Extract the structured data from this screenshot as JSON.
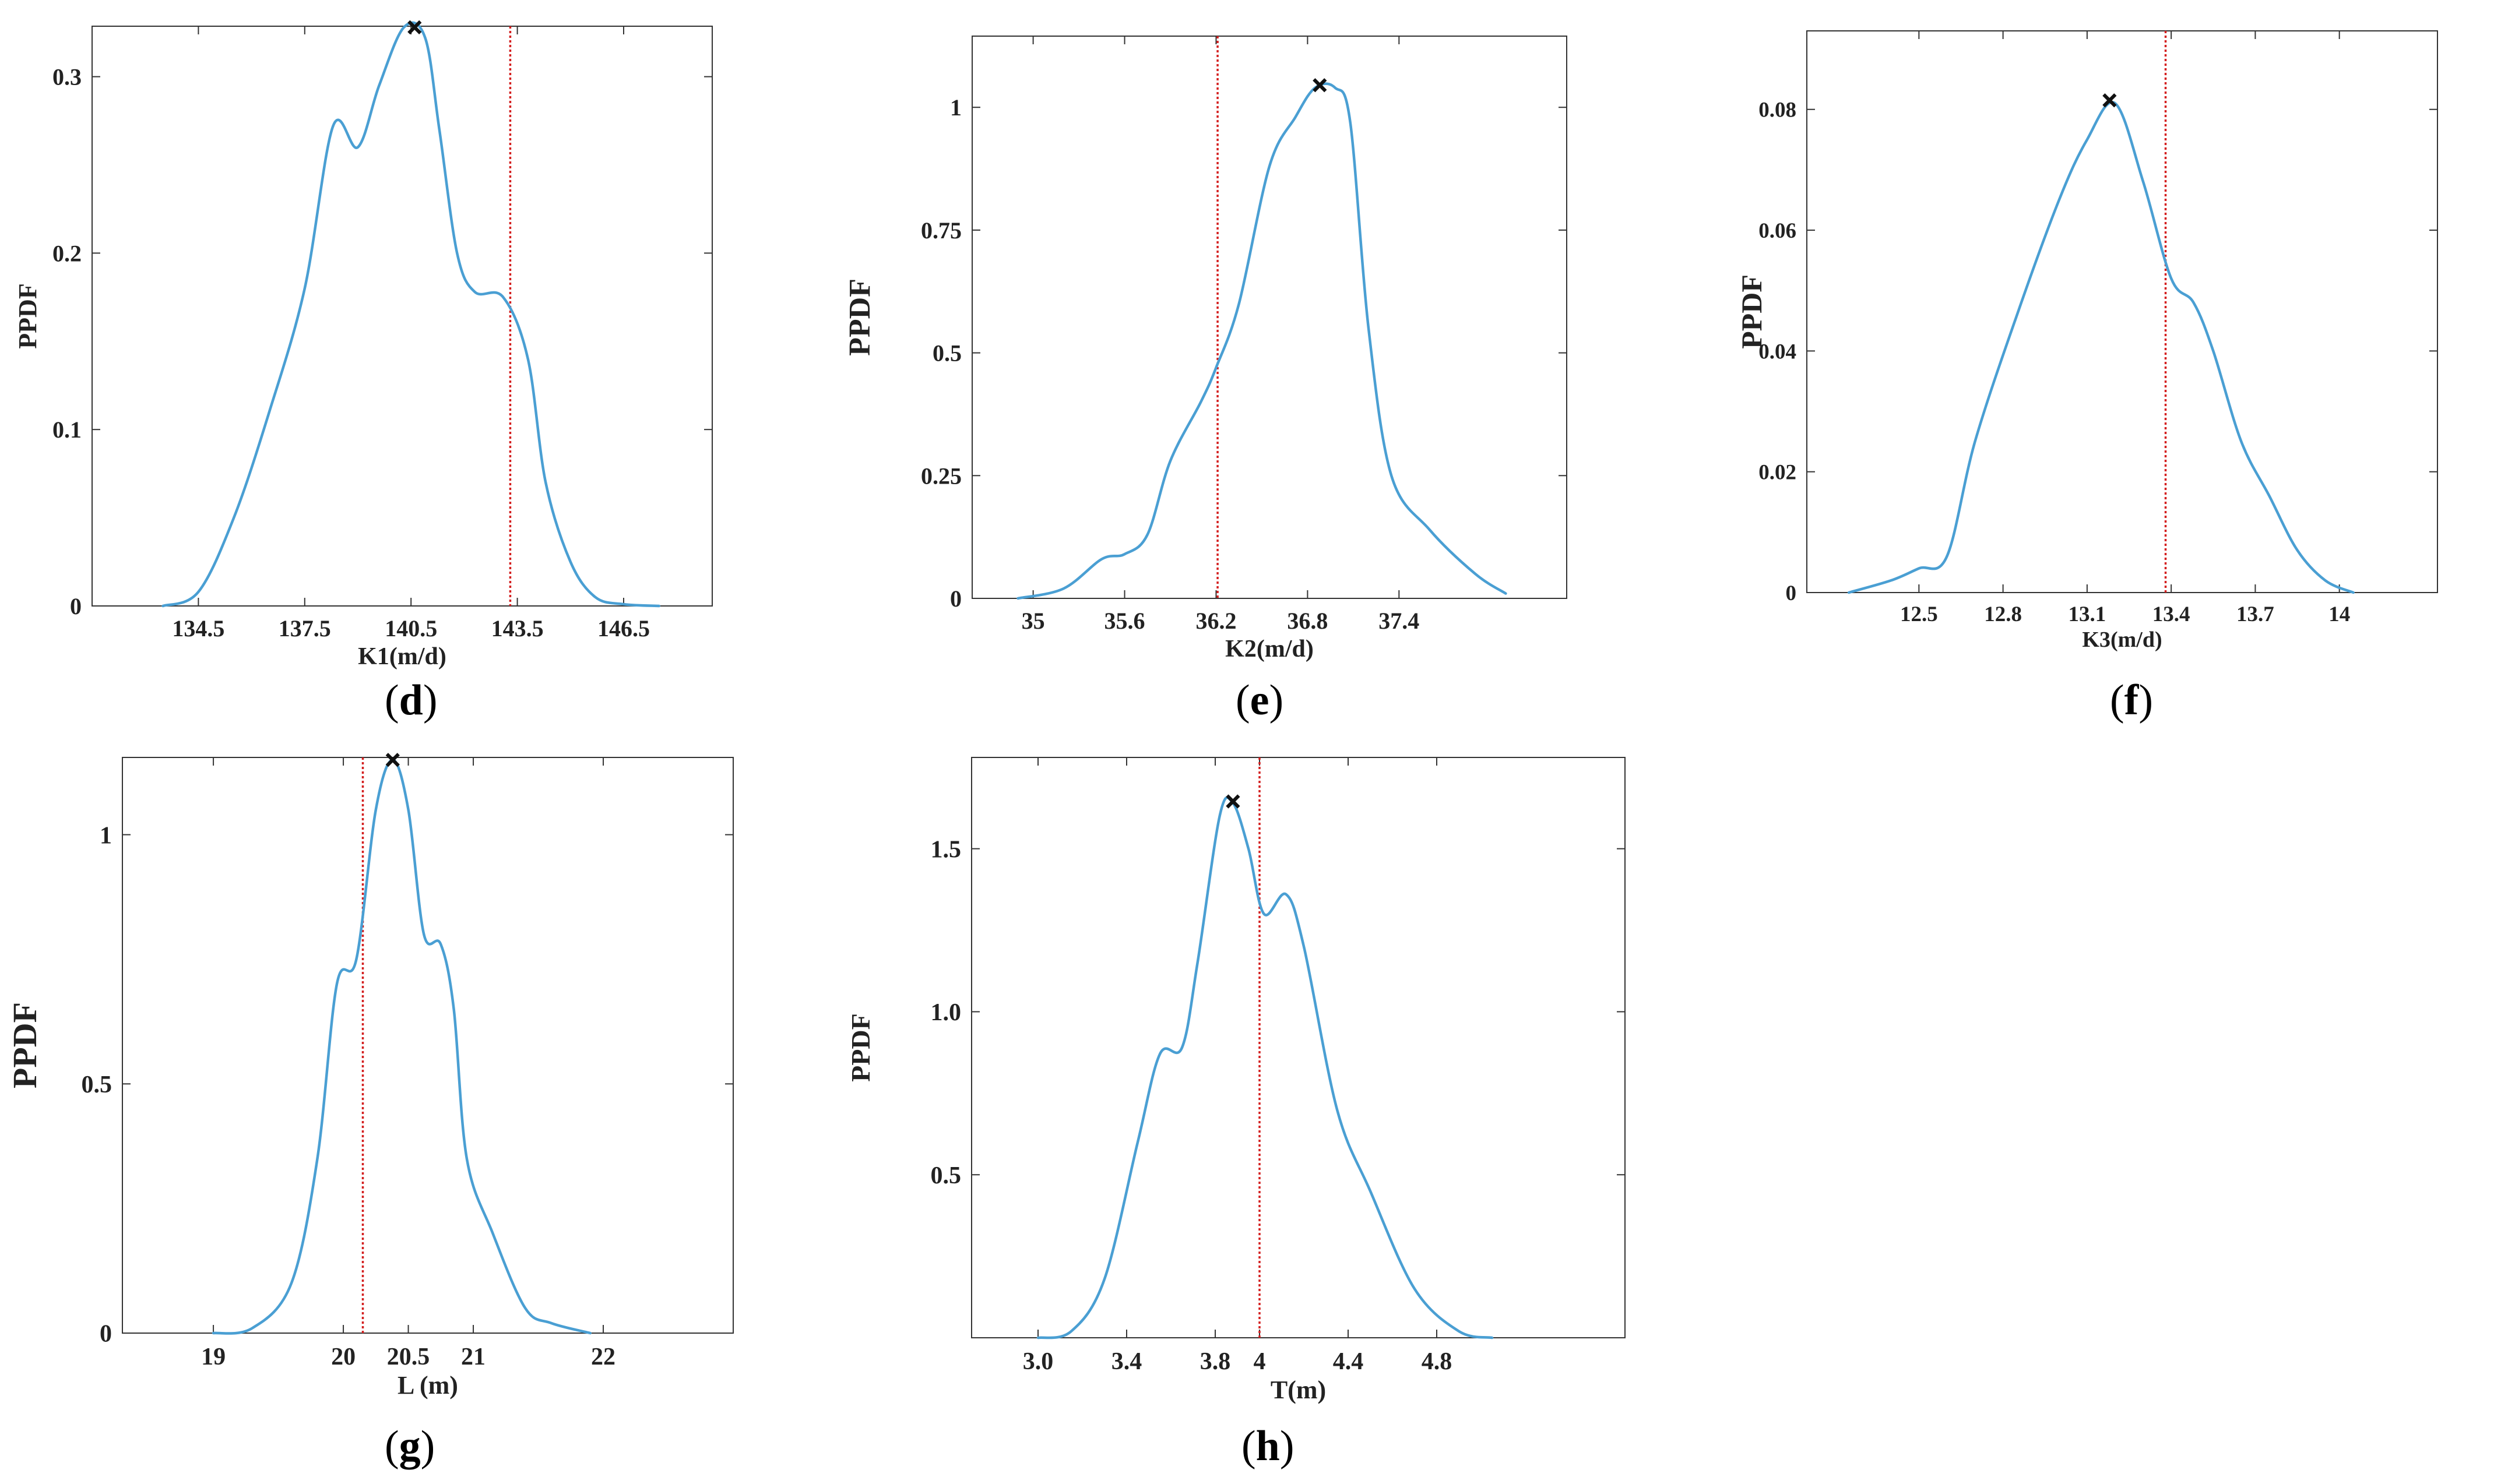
{
  "figure_labels": {
    "d": {
      "open": "(",
      "letter": "d",
      "close": ")"
    },
    "e": {
      "open": "(",
      "letter": "e",
      "close": ")"
    },
    "f": {
      "open": "(",
      "letter": "f",
      "close": ")"
    },
    "g": {
      "open": "(",
      "letter": "g",
      "close": ")"
    },
    "h": {
      "open": "(",
      "letter": "h",
      "close": ")"
    }
  },
  "colors": {
    "curve": "#4a9fd3",
    "reference_line": "#d42020",
    "marker": "#111111",
    "axis": "#333333"
  },
  "chart_data": [
    {
      "id": "d",
      "type": "line",
      "title": "",
      "xlabel": "K1(m/d)",
      "ylabel": "PPDF",
      "xlim": [
        131.5,
        149.0
      ],
      "ylim": [
        0,
        0.3286
      ],
      "xticks": [
        134.5,
        137.5,
        140.5,
        143.5,
        146.5
      ],
      "xtick_labels": [
        "134.5",
        "137.5",
        "140.5",
        "143.5",
        "146.5"
      ],
      "yticks": [
        0,
        0.1,
        0.2,
        0.3
      ],
      "ytick_labels": [
        "0",
        "0.1",
        "0.2",
        "0.3"
      ],
      "x": [
        133.5,
        134.5,
        135.5,
        136.5,
        137.5,
        138.3,
        139.0,
        139.6,
        140.3,
        140.9,
        141.3,
        141.8,
        142.3,
        143.1,
        143.8,
        144.3,
        145.0,
        145.7,
        146.5,
        147.5
      ],
      "y": [
        0.0,
        0.008,
        0.05,
        0.11,
        0.18,
        0.272,
        0.26,
        0.295,
        0.328,
        0.322,
        0.27,
        0.2,
        0.178,
        0.175,
        0.14,
        0.07,
        0.025,
        0.005,
        0.001,
        0.0
      ],
      "peak": {
        "x": 140.6,
        "y": 0.328
      },
      "reference_x": 143.3
    },
    {
      "id": "e",
      "type": "line",
      "title": "",
      "xlabel": "K2(m/d)",
      "ylabel": "PPDF",
      "xlim": [
        34.6,
        38.5
      ],
      "ylim": [
        0,
        1.145
      ],
      "xticks": [
        35.0,
        35.6,
        36.2,
        36.8,
        37.4
      ],
      "xtick_labels": [
        "35",
        "35.6",
        "36.2",
        "36.8",
        "37.4"
      ],
      "yticks": [
        0,
        0.25,
        0.5,
        0.75,
        1.0
      ],
      "ytick_labels": [
        "0",
        "0.25",
        "0.5",
        "0.75",
        "1"
      ],
      "x": [
        34.9,
        35.2,
        35.45,
        35.6,
        35.75,
        35.9,
        36.1,
        36.2,
        36.35,
        36.55,
        36.72,
        36.85,
        36.98,
        37.08,
        37.2,
        37.35,
        37.6,
        37.9,
        38.1
      ],
      "y": [
        0.0,
        0.02,
        0.08,
        0.09,
        0.13,
        0.28,
        0.4,
        0.47,
        0.6,
        0.88,
        0.98,
        1.04,
        1.04,
        0.97,
        0.55,
        0.25,
        0.14,
        0.05,
        0.01
      ],
      "peak": {
        "x": 36.88,
        "y": 1.045
      },
      "reference_x": 36.21
    },
    {
      "id": "f",
      "type": "line",
      "title": "",
      "xlabel": "K3(m/d)",
      "ylabel": "PPDF",
      "xlim": [
        12.1,
        14.35
      ],
      "ylim": [
        0,
        0.093
      ],
      "xticks": [
        12.5,
        12.8,
        13.1,
        13.4,
        13.7,
        14.0
      ],
      "xtick_labels": [
        "12.5",
        "12.8",
        "13.1",
        "13.4",
        "13.7",
        "14"
      ],
      "yticks": [
        0,
        0.02,
        0.04,
        0.06,
        0.08
      ],
      "ytick_labels": [
        "0",
        "0.02",
        "0.04",
        "0.06",
        "0.08"
      ],
      "x": [
        12.25,
        12.4,
        12.5,
        12.6,
        12.7,
        12.85,
        13.0,
        13.1,
        13.2,
        13.3,
        13.4,
        13.48,
        13.55,
        13.65,
        13.75,
        13.85,
        13.95,
        14.05
      ],
      "y": [
        0.0,
        0.002,
        0.004,
        0.006,
        0.025,
        0.046,
        0.065,
        0.075,
        0.081,
        0.068,
        0.052,
        0.048,
        0.04,
        0.025,
        0.016,
        0.007,
        0.002,
        0.0
      ],
      "peak": {
        "x": 13.18,
        "y": 0.0815
      },
      "reference_x": 13.38
    },
    {
      "id": "g",
      "type": "line",
      "title": "",
      "xlabel": "L (m)",
      "ylabel": "PPDF",
      "xlim": [
        18.3,
        23.0
      ],
      "ylim": [
        0,
        1.155
      ],
      "xticks": [
        19.0,
        20.0,
        20.5,
        21.0,
        22.0
      ],
      "xtick_labels": [
        "19",
        "20",
        "20.5",
        "21",
        "22"
      ],
      "yticks": [
        0,
        0.5,
        1.0
      ],
      "ytick_labels": [
        "0",
        "0.5",
        "1"
      ],
      "x": [
        19.0,
        19.3,
        19.6,
        19.8,
        19.95,
        20.1,
        20.25,
        20.38,
        20.5,
        20.62,
        20.75,
        20.85,
        20.95,
        21.15,
        21.4,
        21.6,
        21.9
      ],
      "y": [
        0.0,
        0.01,
        0.1,
        0.35,
        0.7,
        0.75,
        1.05,
        1.15,
        1.05,
        0.8,
        0.78,
        0.65,
        0.35,
        0.2,
        0.05,
        0.02,
        0.0
      ],
      "peak": {
        "x": 20.38,
        "y": 1.15
      },
      "reference_x": 20.15
    },
    {
      "id": "h",
      "type": "line",
      "title": "",
      "xlabel": "T(m)",
      "ylabel": "PPDF",
      "xlim": [
        2.7,
        5.65
      ],
      "ylim": [
        0,
        1.78
      ],
      "xticks": [
        3.0,
        3.4,
        3.8,
        4.0,
        4.4,
        4.8
      ],
      "xtick_labels": [
        "3.0",
        "3.4",
        "3.8",
        "4",
        "4.4",
        "4.8"
      ],
      "yticks": [
        0.5,
        1.0,
        1.5
      ],
      "ytick_labels": [
        "0.5",
        "1.0",
        "1.5"
      ],
      "x": [
        3.0,
        3.15,
        3.3,
        3.45,
        3.55,
        3.65,
        3.72,
        3.82,
        3.88,
        3.95,
        4.02,
        4.12,
        4.2,
        4.35,
        4.5,
        4.7,
        4.9,
        5.05
      ],
      "y": [
        0.0,
        0.02,
        0.18,
        0.6,
        0.87,
        0.89,
        1.15,
        1.6,
        1.64,
        1.5,
        1.3,
        1.36,
        1.2,
        0.7,
        0.45,
        0.15,
        0.02,
        0.0
      ],
      "peak": {
        "x": 3.88,
        "y": 1.645
      },
      "reference_x": 4.0
    }
  ]
}
